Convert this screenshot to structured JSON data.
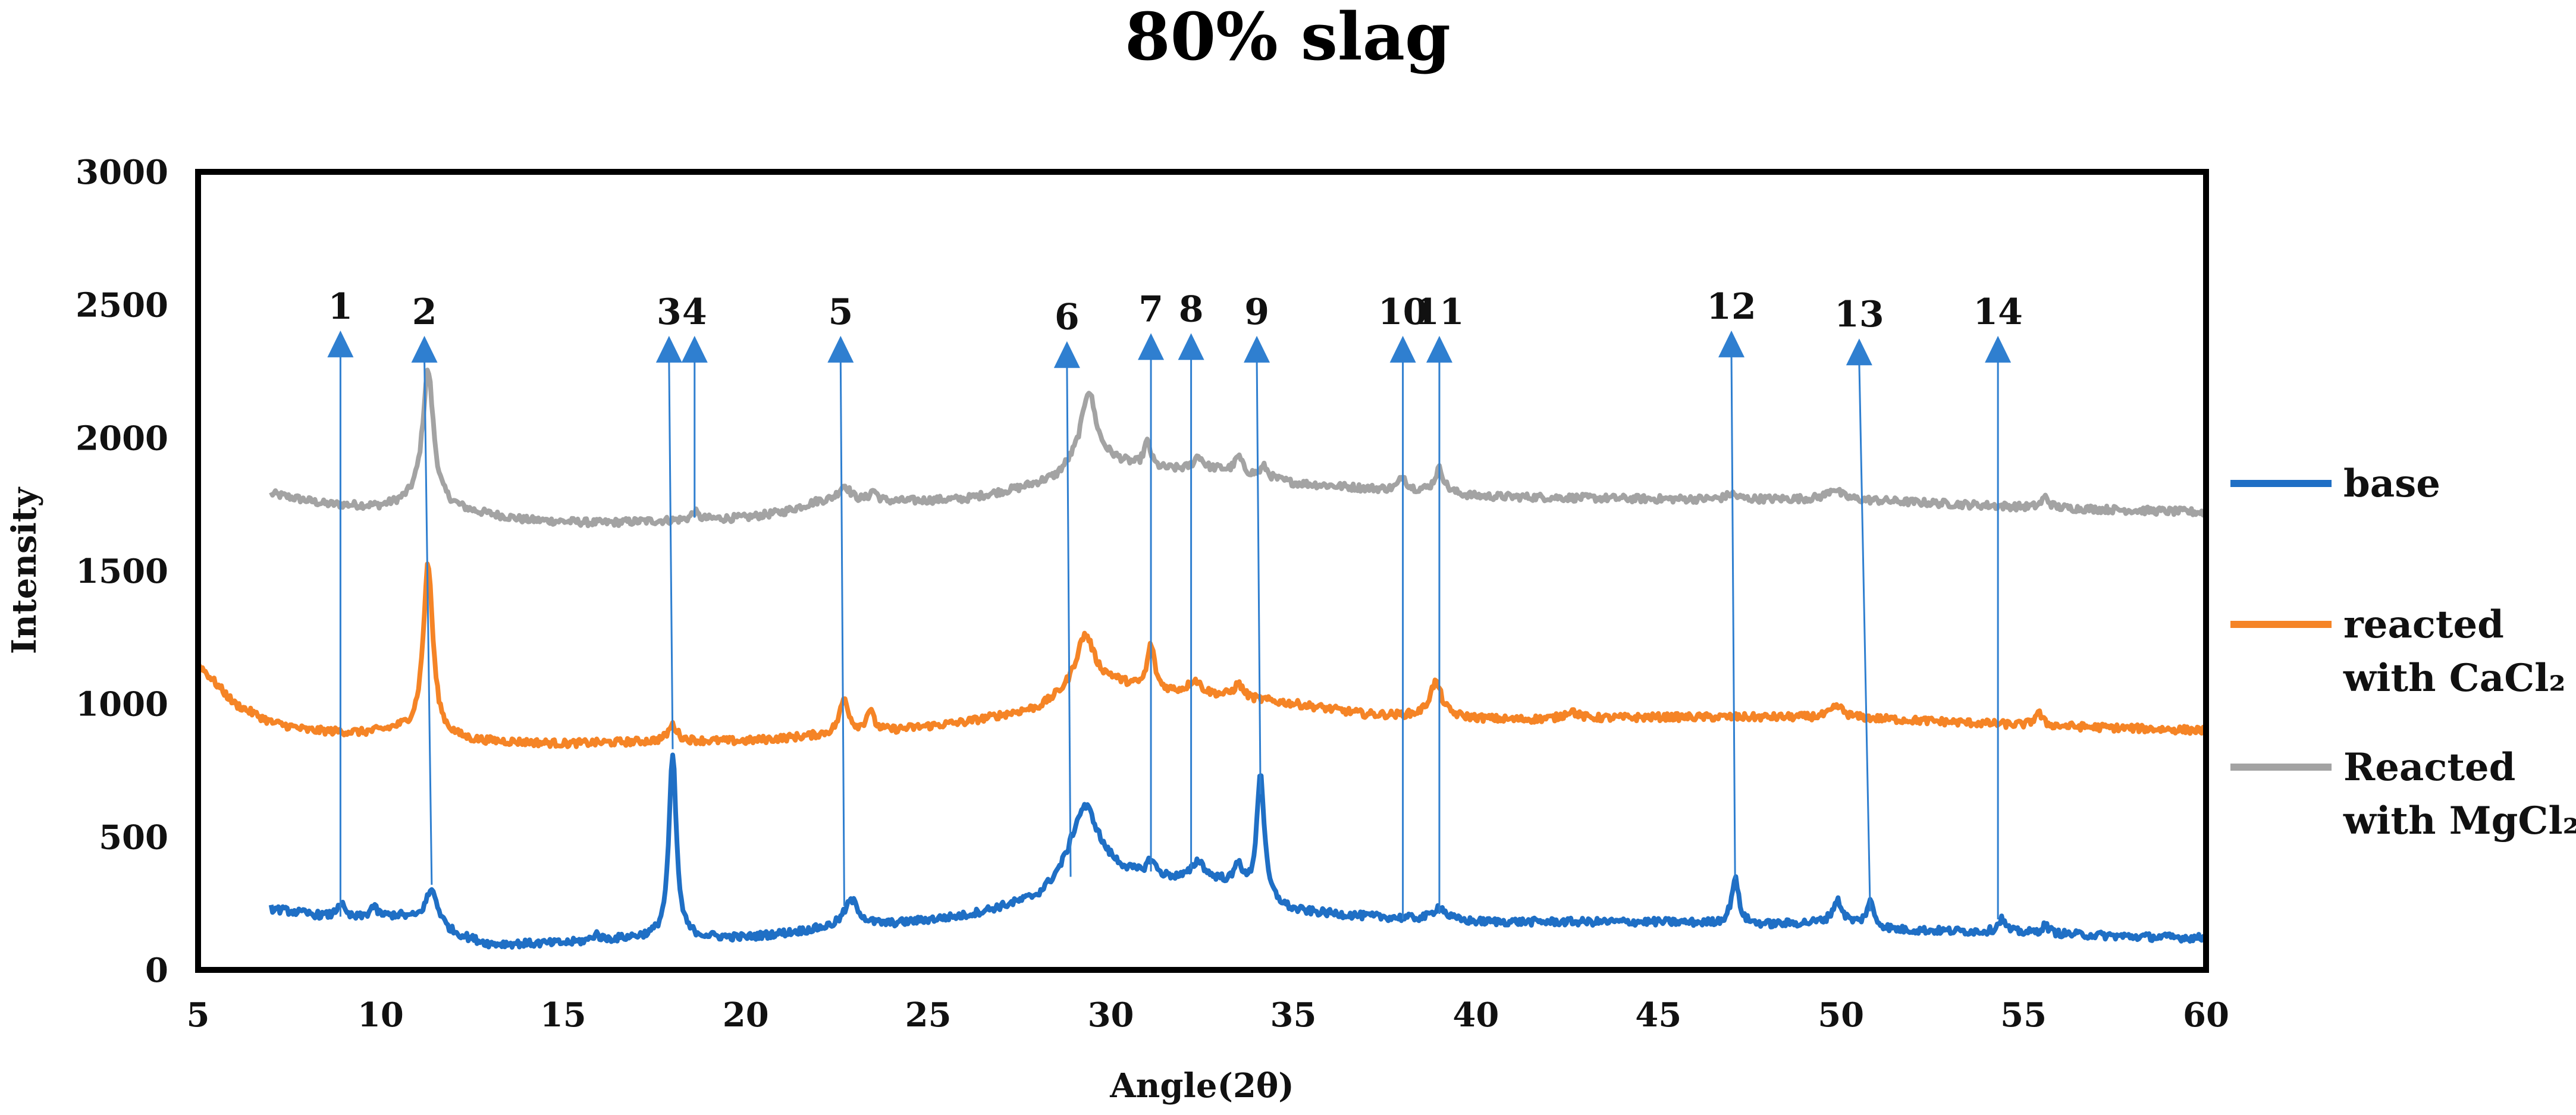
{
  "chart_data": {
    "type": "line",
    "title": "80% slag",
    "xlabel": "Angle(2θ)",
    "ylabel": "Intensity",
    "xlim": [
      5,
      60
    ],
    "ylim": [
      0,
      3000
    ],
    "xticks": [
      "5",
      "10",
      "15",
      "20",
      "25",
      "30",
      "35",
      "40",
      "45",
      "50",
      "55",
      "60"
    ],
    "yticks": [
      "0",
      "500",
      "1000",
      "1500",
      "2000",
      "2500",
      "3000"
    ],
    "grid": false,
    "legend_position": "right",
    "series": [
      {
        "name": "base",
        "legend_line1": "base",
        "legend_line2": "",
        "color": "#1f6fc5",
        "x_start": 7,
        "x_end": 60,
        "baseline": [
          [
            7,
            230
          ],
          [
            9,
            190
          ],
          [
            10.5,
            200
          ],
          [
            12,
            130
          ],
          [
            13,
            95
          ],
          [
            15,
            100
          ],
          [
            17,
            120
          ],
          [
            18.5,
            120
          ],
          [
            20,
            120
          ],
          [
            22,
            150
          ],
          [
            24,
            170
          ],
          [
            26,
            200
          ],
          [
            28,
            260
          ],
          [
            29,
            350
          ],
          [
            30,
            360
          ],
          [
            31,
            340
          ],
          [
            33,
            330
          ],
          [
            35,
            220
          ],
          [
            37,
            200
          ],
          [
            40,
            180
          ],
          [
            45,
            180
          ],
          [
            48,
            170
          ],
          [
            50,
            180
          ],
          [
            51.5,
            150
          ],
          [
            55,
            140
          ],
          [
            58,
            125
          ],
          [
            60,
            120
          ]
        ],
        "peaks": [
          [
            8.9,
            60,
            0.12
          ],
          [
            9.8,
            40,
            0.12
          ],
          [
            11.4,
            140,
            0.22
          ],
          [
            15.9,
            25,
            0.1
          ],
          [
            18.0,
            690,
            0.12
          ],
          [
            22.9,
            100,
            0.25
          ],
          [
            29.3,
            260,
            0.45
          ],
          [
            31.1,
            60,
            0.15
          ],
          [
            32.4,
            70,
            0.2
          ],
          [
            33.5,
            90,
            0.12
          ],
          [
            34.1,
            470,
            0.12
          ],
          [
            39.0,
            50,
            0.2
          ],
          [
            47.1,
            170,
            0.12
          ],
          [
            49.9,
            80,
            0.15
          ],
          [
            50.8,
            90,
            0.12
          ],
          [
            54.4,
            50,
            0.12
          ],
          [
            55.6,
            30,
            0.12
          ]
        ]
      },
      {
        "name": "reacted with CaCl2",
        "legend_line1": "reacted",
        "legend_line2": "with CaCl₂",
        "color": "#f58426",
        "x_start": 5,
        "x_end": 60,
        "baseline": [
          [
            5,
            1150
          ],
          [
            6,
            1000
          ],
          [
            7,
            930
          ],
          [
            8,
            900
          ],
          [
            9.5,
            890
          ],
          [
            10.5,
            900
          ],
          [
            12.5,
            860
          ],
          [
            15,
            850
          ],
          [
            18,
            860
          ],
          [
            20,
            860
          ],
          [
            22,
            880
          ],
          [
            24,
            900
          ],
          [
            26,
            930
          ],
          [
            28,
            980
          ],
          [
            29,
            1050
          ],
          [
            30,
            1080
          ],
          [
            31,
            1050
          ],
          [
            33,
            1030
          ],
          [
            35,
            1000
          ],
          [
            37,
            960
          ],
          [
            39,
            950
          ],
          [
            41,
            940
          ],
          [
            45,
            950
          ],
          [
            50,
            950
          ],
          [
            55,
            920
          ],
          [
            60,
            900
          ]
        ],
        "peaks": [
          [
            11.3,
            640,
            0.16
          ],
          [
            18.0,
            60,
            0.15
          ],
          [
            22.7,
            130,
            0.15
          ],
          [
            23.4,
            80,
            0.12
          ],
          [
            29.3,
            200,
            0.3
          ],
          [
            31.1,
            170,
            0.12
          ],
          [
            32.3,
            50,
            0.2
          ],
          [
            33.5,
            50,
            0.15
          ],
          [
            38.9,
            130,
            0.2
          ],
          [
            42.6,
            30,
            0.2
          ],
          [
            49.9,
            40,
            0.2
          ],
          [
            55.4,
            50,
            0.12
          ]
        ]
      },
      {
        "name": "Reacted with MgCl2",
        "legend_line1": "Reacted",
        "legend_line2": "with MgCl₂",
        "color": "#a3a3a3",
        "x_start": 7,
        "x_end": 60,
        "baseline": [
          [
            7,
            1790
          ],
          [
            8.5,
            1750
          ],
          [
            10,
            1740
          ],
          [
            11,
            1760
          ],
          [
            12.5,
            1720
          ],
          [
            14,
            1690
          ],
          [
            16,
            1680
          ],
          [
            18,
            1690
          ],
          [
            20,
            1700
          ],
          [
            21,
            1720
          ],
          [
            22,
            1760
          ],
          [
            24,
            1760
          ],
          [
            26,
            1770
          ],
          [
            27.5,
            1810
          ],
          [
            28.5,
            1850
          ],
          [
            29.3,
            1950
          ],
          [
            30,
            1920
          ],
          [
            31,
            1880
          ],
          [
            33,
            1880
          ],
          [
            35,
            1830
          ],
          [
            37,
            1810
          ],
          [
            38.5,
            1800
          ],
          [
            40,
            1780
          ],
          [
            45,
            1770
          ],
          [
            50,
            1770
          ],
          [
            55,
            1740
          ],
          [
            60,
            1720
          ]
        ],
        "peaks": [
          [
            11.3,
            500,
            0.18
          ],
          [
            18.6,
            30,
            0.1
          ],
          [
            22.7,
            60,
            0.2
          ],
          [
            23.5,
            40,
            0.12
          ],
          [
            29.4,
            230,
            0.22
          ],
          [
            31.0,
            100,
            0.12
          ],
          [
            32.4,
            50,
            0.15
          ],
          [
            33.5,
            60,
            0.12
          ],
          [
            34.2,
            40,
            0.12
          ],
          [
            38.0,
            50,
            0.12
          ],
          [
            39.0,
            90,
            0.15
          ],
          [
            47.0,
            20,
            0.15
          ],
          [
            49.8,
            40,
            0.2
          ],
          [
            55.6,
            40,
            0.12
          ]
        ]
      }
    ],
    "markers": [
      {
        "label": "1",
        "x": 8.9,
        "x_base": 8.9,
        "y_base": 200,
        "label_y": 2560
      },
      {
        "label": "2",
        "x": 11.2,
        "x_base": 11.4,
        "y_base": 320,
        "label_y": 2540
      },
      {
        "label": "3",
        "x": 17.9,
        "x_base": 18.0,
        "y_base": 830,
        "label_y": 2540
      },
      {
        "label": "4",
        "x": 18.6,
        "x_base": 18.6,
        "y_base": 1700,
        "label_y": 2540
      },
      {
        "label": "5",
        "x": 22.6,
        "x_base": 22.7,
        "y_base": 240,
        "label_y": 2540
      },
      {
        "label": "6",
        "x": 28.8,
        "x_base": 28.9,
        "y_base": 350,
        "label_y": 2520
      },
      {
        "label": "7",
        "x": 31.1,
        "x_base": 31.1,
        "y_base": 370,
        "label_y": 2550
      },
      {
        "label": "8",
        "x": 32.2,
        "x_base": 32.2,
        "y_base": 380,
        "label_y": 2550
      },
      {
        "label": "9",
        "x": 34.0,
        "x_base": 34.1,
        "y_base": 660,
        "label_y": 2540
      },
      {
        "label": "10",
        "x": 38.0,
        "x_base": 38.0,
        "y_base": 190,
        "label_y": 2540
      },
      {
        "label": "11",
        "x": 39.0,
        "x_base": 39.0,
        "y_base": 210,
        "label_y": 2540
      },
      {
        "label": "12",
        "x": 47.0,
        "x_base": 47.1,
        "y_base": 340,
        "label_y": 2560
      },
      {
        "label": "13",
        "x": 50.5,
        "x_base": 50.8,
        "y_base": 220,
        "label_y": 2530
      },
      {
        "label": "14",
        "x": 54.3,
        "x_base": 54.3,
        "y_base": 190,
        "label_y": 2540
      }
    ],
    "marker_color": "#2f7fd0"
  }
}
